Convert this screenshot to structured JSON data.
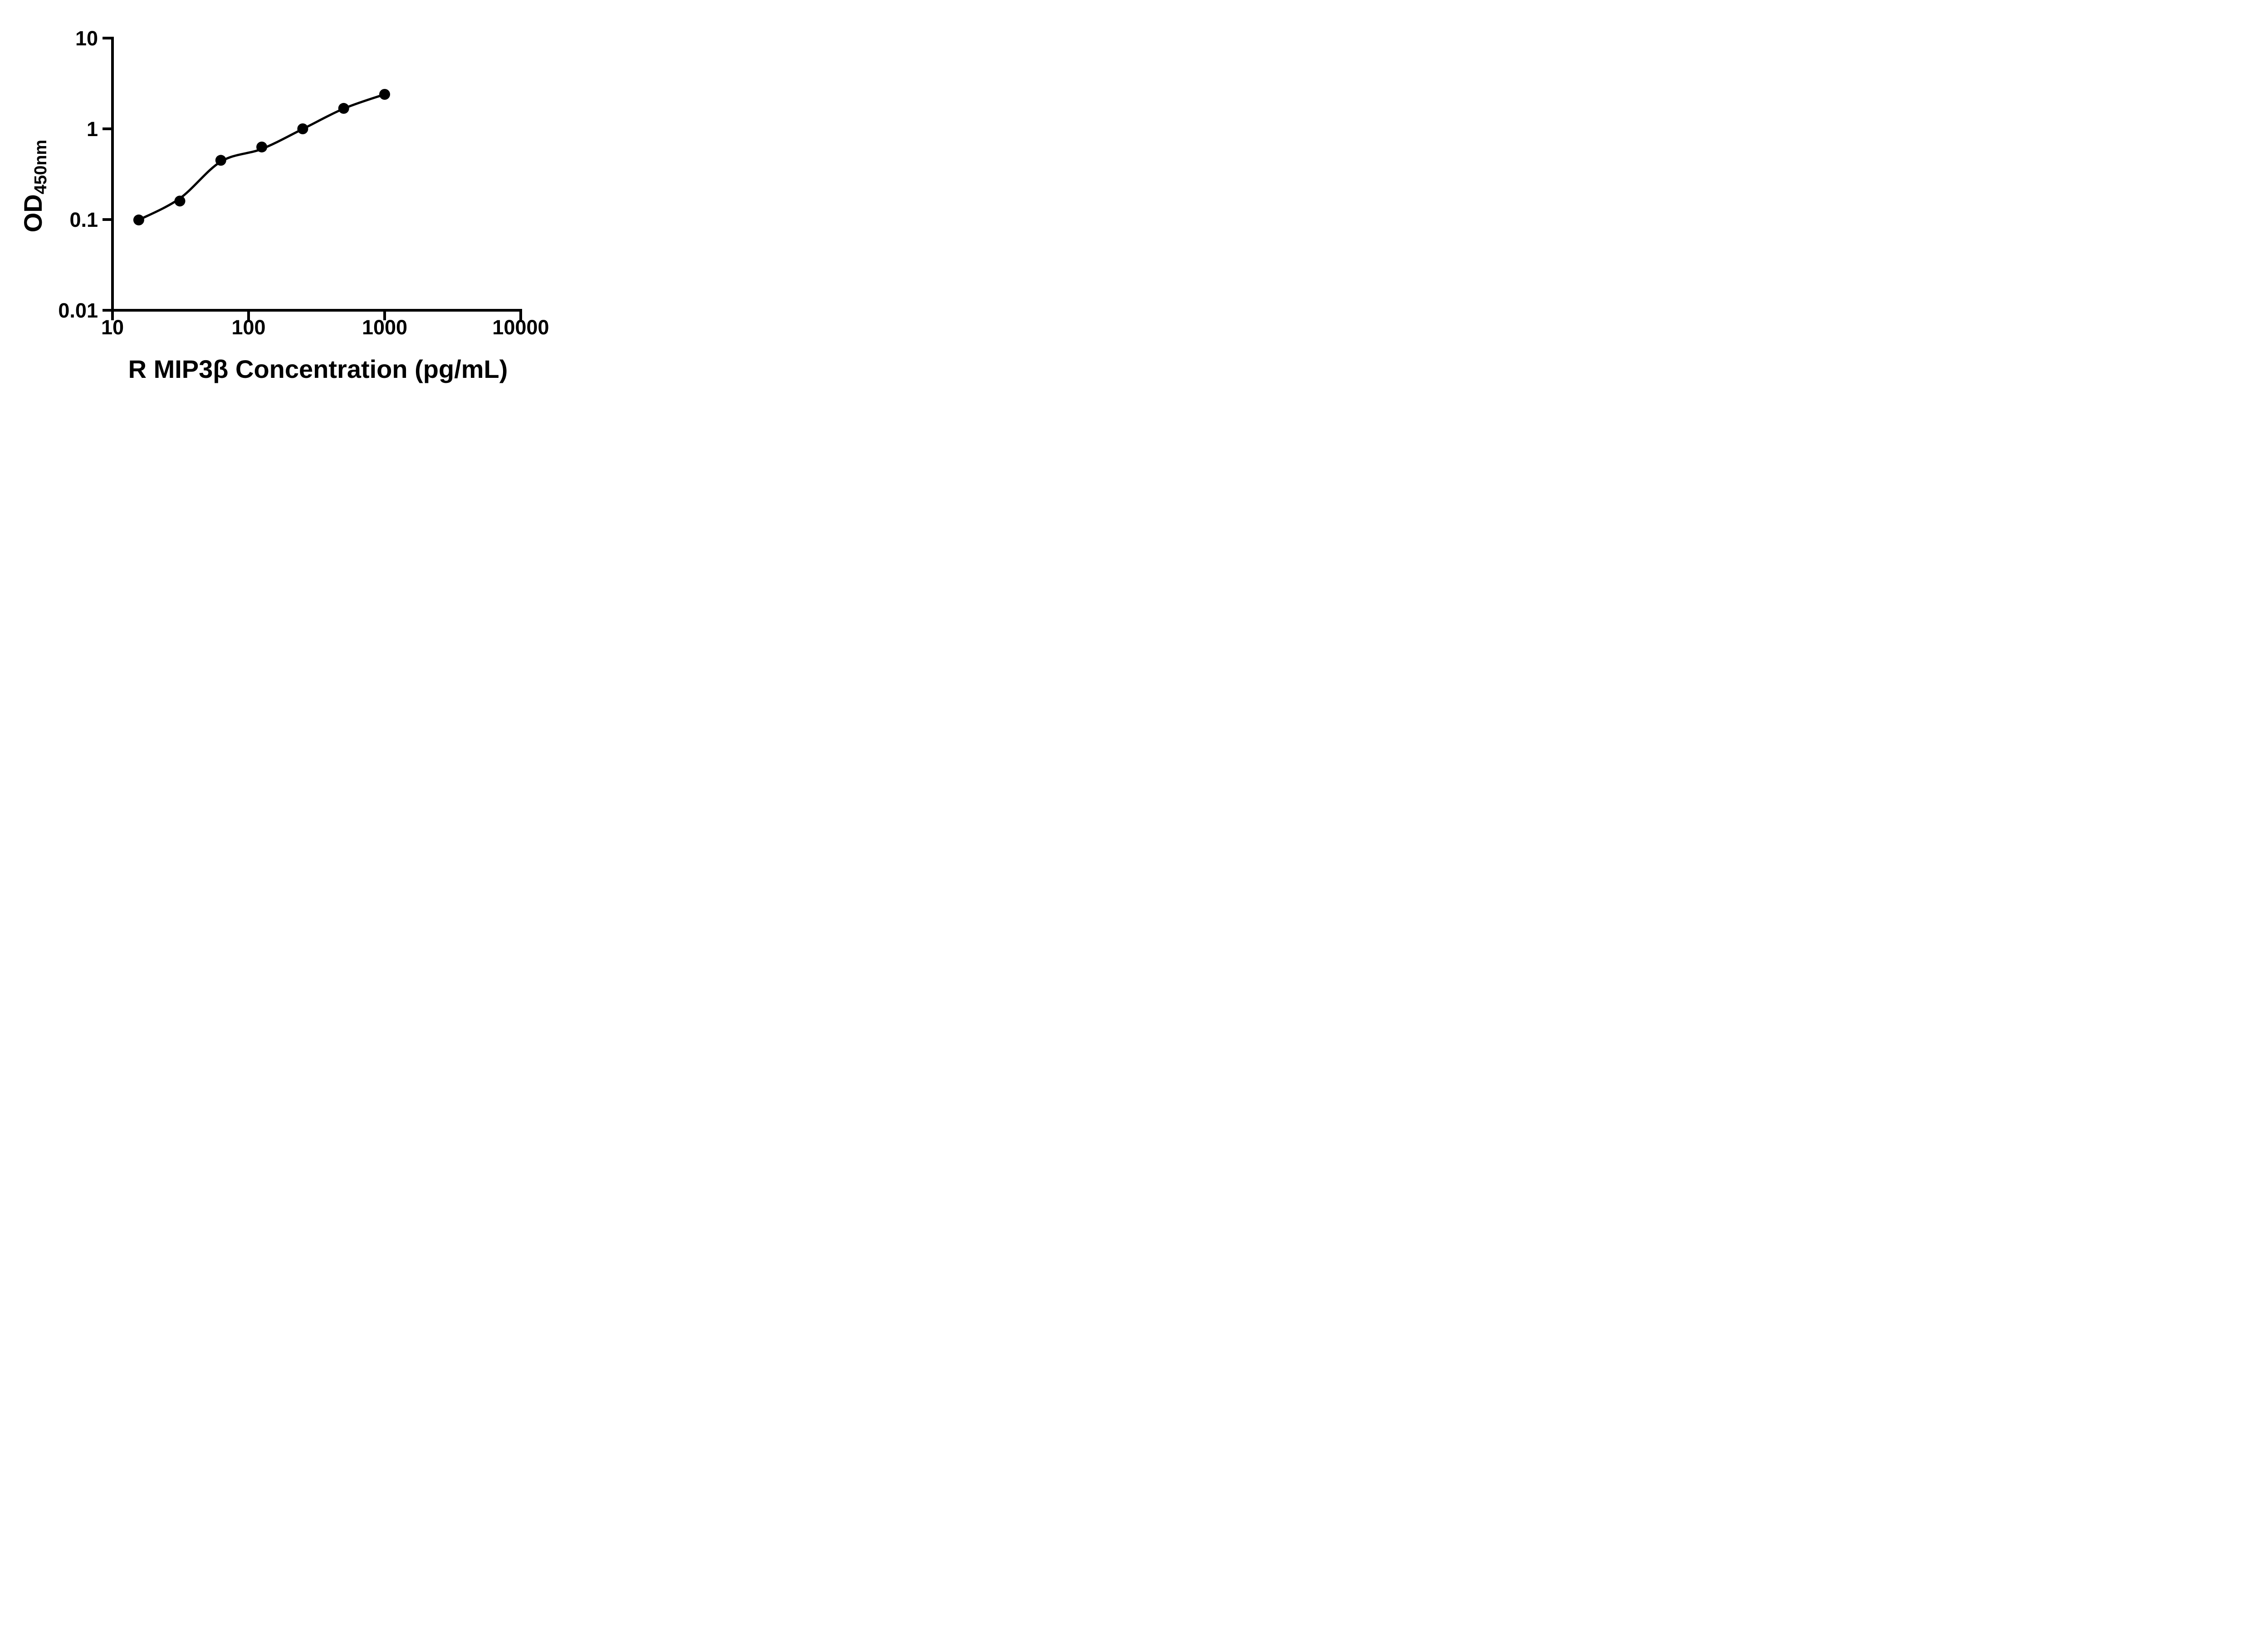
{
  "chart_data": {
    "type": "scatter",
    "title": "",
    "xlabel": "R MIP3β Concentration (pg/mL)",
    "ylabel_main": "OD",
    "ylabel_sub": "450nm",
    "x_scale": "log",
    "y_scale": "log",
    "xlim": [
      10,
      10000
    ],
    "ylim": [
      0.01,
      10
    ],
    "grid": false,
    "legend": "none",
    "axis_color": "#000000",
    "marker_color": "#000000",
    "line_color": "#000000",
    "x_ticks": [
      {
        "value": 10,
        "label": "10"
      },
      {
        "value": 100,
        "label": "100"
      },
      {
        "value": 1000,
        "label": "1000"
      },
      {
        "value": 10000,
        "label": "10000"
      }
    ],
    "y_ticks": [
      {
        "value": 10,
        "label": "10"
      },
      {
        "value": 1,
        "label": "1"
      },
      {
        "value": 0.1,
        "label": "0.1"
      },
      {
        "value": 0.01,
        "label": "0.01"
      }
    ],
    "points": [
      {
        "x": 15.6,
        "y": 0.099
      },
      {
        "x": 31.25,
        "y": 0.16
      },
      {
        "x": 62.5,
        "y": 0.45
      },
      {
        "x": 125,
        "y": 0.63
      },
      {
        "x": 250,
        "y": 1.0
      },
      {
        "x": 500,
        "y": 1.68
      },
      {
        "x": 1000,
        "y": 2.4
      }
    ],
    "fit_curve": [
      {
        "x": 15.6,
        "y": 0.099
      },
      {
        "x": 31.25,
        "y": 0.171
      },
      {
        "x": 62.5,
        "y": 0.435
      },
      {
        "x": 125,
        "y": 0.6
      },
      {
        "x": 250,
        "y": 0.995
      },
      {
        "x": 500,
        "y": 1.67
      },
      {
        "x": 1000,
        "y": 2.4
      }
    ]
  }
}
